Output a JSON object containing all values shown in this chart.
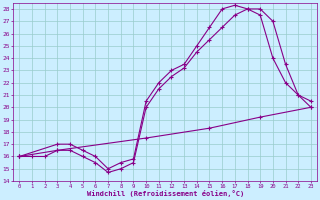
{
  "xlabel": "Windchill (Refroidissement éolien,°C)",
  "bg_color": "#cceeff",
  "line_color": "#880088",
  "grid_color": "#99cccc",
  "xlim": [
    -0.5,
    23.5
  ],
  "ylim": [
    14,
    28.5
  ],
  "xticks": [
    0,
    1,
    2,
    3,
    4,
    5,
    6,
    7,
    8,
    9,
    10,
    11,
    12,
    13,
    14,
    15,
    16,
    17,
    18,
    19,
    20,
    21,
    22,
    23
  ],
  "yticks": [
    14,
    15,
    16,
    17,
    18,
    19,
    20,
    21,
    22,
    23,
    24,
    25,
    26,
    27,
    28
  ],
  "series1_x": [
    0,
    1,
    2,
    3,
    4,
    5,
    6,
    7,
    8,
    9,
    10,
    11,
    12,
    13,
    14,
    15,
    16,
    17,
    18,
    19,
    20,
    21,
    22,
    23
  ],
  "series1_y": [
    16,
    16,
    16,
    16.5,
    16.5,
    16,
    15.5,
    14.7,
    15,
    15.5,
    20,
    21.5,
    22.5,
    23.2,
    24.5,
    25.5,
    26.5,
    27.5,
    28,
    28,
    27,
    23.5,
    21,
    20.5
  ],
  "series2_x": [
    0,
    3,
    4,
    5,
    6,
    7,
    8,
    9,
    10,
    11,
    12,
    13,
    14,
    15,
    16,
    17,
    18,
    19,
    20,
    21,
    22,
    23
  ],
  "series2_y": [
    16,
    17,
    17,
    16.5,
    16,
    15,
    15.5,
    15.8,
    20.5,
    22,
    23,
    23.5,
    25,
    26.5,
    28,
    28.3,
    28,
    27.5,
    24,
    22,
    21,
    20
  ],
  "series3_x": [
    0,
    3,
    10,
    15,
    19,
    23
  ],
  "series3_y": [
    16,
    16.5,
    17.5,
    18.3,
    19.2,
    20
  ]
}
